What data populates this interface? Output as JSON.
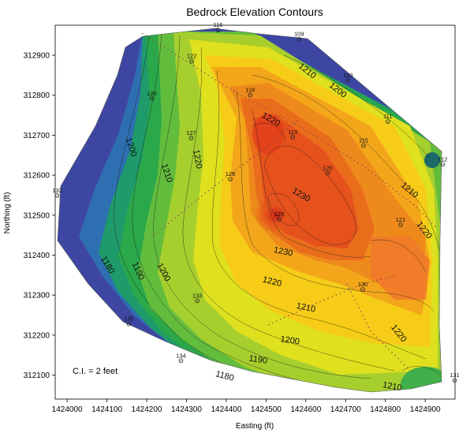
{
  "chart_data": {
    "type": "contour",
    "title": "Bedrock Elevation Contours",
    "xlabel": "Easting (ft)",
    "ylabel": "Northing (ft)",
    "xlim": [
      1423970,
      1424975
    ],
    "ylim": [
      312040,
      312975
    ],
    "x_ticks": [
      1424000,
      1424100,
      1424200,
      1424300,
      1424400,
      1424500,
      1424600,
      1424700,
      1424800,
      1424900
    ],
    "y_ticks": [
      312100,
      312200,
      312300,
      312400,
      312500,
      312600,
      312700,
      312800,
      312900
    ],
    "x_tick_labels": [
      "1424000",
      "1424100",
      "1424200",
      "1424300",
      "1424400",
      "1424500",
      "1424600",
      "1424700",
      "1424800",
      "1424900"
    ],
    "y_tick_labels": [
      "312100",
      "312200",
      "312300",
      "312400",
      "312500",
      "312600",
      "312700",
      "312800",
      "312900"
    ],
    "annotation": "C.I. = 2 feet",
    "wells": [
      {
        "id": "116",
        "x": 1424379,
        "y": 312963
      },
      {
        "id": "109",
        "x": 1424583,
        "y": 312940
      },
      {
        "id": "122",
        "x": 1424313,
        "y": 312885
      },
      {
        "id": "110",
        "x": 1424706,
        "y": 312837
      },
      {
        "id": "126",
        "x": 1424213,
        "y": 312792
      },
      {
        "id": "118",
        "x": 1424460,
        "y": 312800
      },
      {
        "id": "111",
        "x": 1424806,
        "y": 312734
      },
      {
        "id": "127",
        "x": 1424312,
        "y": 312693
      },
      {
        "id": "119",
        "x": 1424567,
        "y": 312695
      },
      {
        "id": "115",
        "x": 1424745,
        "y": 312674
      },
      {
        "id": "112",
        "x": 1424944,
        "y": 312627
      },
      {
        "id": "128",
        "x": 1424410,
        "y": 312590
      },
      {
        "id": "120",
        "x": 1424655,
        "y": 312605
      },
      {
        "id": "132",
        "x": 1423975,
        "y": 312549
      },
      {
        "id": "129",
        "x": 1424533,
        "y": 312490
      },
      {
        "id": "121",
        "x": 1424838,
        "y": 312476
      },
      {
        "id": "130",
        "x": 1424743,
        "y": 312314
      },
      {
        "id": "133",
        "x": 1424327,
        "y": 312286
      },
      {
        "id": "135",
        "x": 1424155,
        "y": 312228
      },
      {
        "id": "134",
        "x": 1424286,
        "y": 312136
      },
      {
        "id": "131",
        "x": 1424974,
        "y": 312087
      }
    ],
    "contour_labels": [
      {
        "text": "1210",
        "x": 1424603,
        "y": 312860,
        "angle": 38
      },
      {
        "text": "1200",
        "x": 1424680,
        "y": 312812,
        "angle": 38
      },
      {
        "text": "1220",
        "x": 1424512,
        "y": 312739,
        "angle": 30
      },
      {
        "text": "1200",
        "x": 1424160,
        "y": 312670,
        "angle": 72
      },
      {
        "text": "1220",
        "x": 1424327,
        "y": 312640,
        "angle": 80
      },
      {
        "text": "1210",
        "x": 1424250,
        "y": 312605,
        "angle": 72
      },
      {
        "text": "1230",
        "x": 1424588,
        "y": 312550,
        "angle": 30
      },
      {
        "text": "1210",
        "x": 1424860,
        "y": 312562,
        "angle": 40
      },
      {
        "text": "1220",
        "x": 1424897,
        "y": 312462,
        "angle": 52
      },
      {
        "text": "1230",
        "x": 1424543,
        "y": 312408,
        "angle": 12
      },
      {
        "text": "1180",
        "x": 1424101,
        "y": 312375,
        "angle": 60
      },
      {
        "text": "1190",
        "x": 1424178,
        "y": 312360,
        "angle": 66
      },
      {
        "text": "1200",
        "x": 1424242,
        "y": 312357,
        "angle": 62
      },
      {
        "text": "1220",
        "x": 1424515,
        "y": 312333,
        "angle": 14
      },
      {
        "text": "1210",
        "x": 1424600,
        "y": 312268,
        "angle": 12
      },
      {
        "text": "1200",
        "x": 1424560,
        "y": 312186,
        "angle": 8
      },
      {
        "text": "1220",
        "x": 1424833,
        "y": 312204,
        "angle": 52
      },
      {
        "text": "1190",
        "x": 1424480,
        "y": 312138,
        "angle": 8
      },
      {
        "text": "1180",
        "x": 1424396,
        "y": 312097,
        "angle": 15
      },
      {
        "text": "1210",
        "x": 1424817,
        "y": 312071,
        "angle": 10
      }
    ],
    "color_scale": {
      "low": "#4a3fa0",
      "mid_low": "#1f9a4a",
      "mid": "#f6e600",
      "mid_high": "#f29a1a",
      "high": "#d92a1a"
    }
  }
}
